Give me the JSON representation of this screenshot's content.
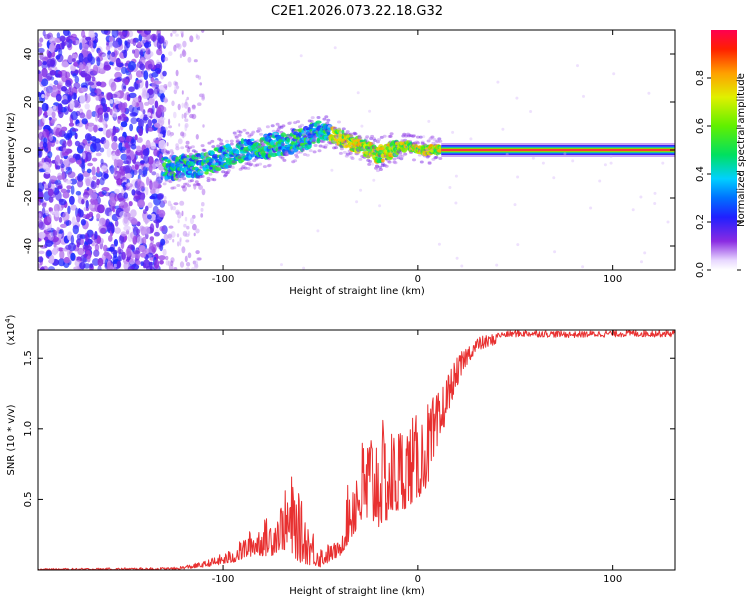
{
  "title": "C2E1.2026.073.22.18.G32",
  "chart_data": [
    {
      "type": "heatmap",
      "name": "spectrogram",
      "xlabel": "Height of straight line (km)",
      "ylabel": "Frequency (Hz)",
      "xlim": [
        -195,
        132
      ],
      "ylim": [
        -50,
        50
      ],
      "xticks": [
        -100,
        0,
        100
      ],
      "xtick_labels": [
        "-100",
        "0",
        "100"
      ],
      "yticks": [
        -40,
        -20,
        0,
        20,
        40
      ],
      "ytick_labels": [
        "-40",
        "-20",
        "0",
        "20",
        "40"
      ],
      "noise_region_km": [
        -195,
        -130
      ],
      "signal_start_km": -130,
      "stable_from_km": 12,
      "ridge_frequency_hz": {
        "x": [
          -130,
          -110,
          -90,
          -75,
          -60,
          -50,
          -45,
          -40,
          -30,
          -20,
          -10,
          -5,
          0,
          5,
          12,
          132
        ],
        "y": [
          -8,
          -6,
          0,
          2,
          4,
          8,
          7,
          5,
          2,
          -2,
          1,
          2,
          0,
          0,
          0,
          0
        ]
      },
      "colorbar": {
        "label": "Normalized spectral amplitude",
        "range": [
          0,
          1
        ],
        "ticks": [
          0.0,
          0.2,
          0.4,
          0.6,
          0.8
        ],
        "tick_labels": [
          "0.0",
          "0.2",
          "0.4",
          "0.6",
          "0.8"
        ]
      }
    },
    {
      "type": "line",
      "name": "snr",
      "xlabel": "Height of straight line (km)",
      "ylabel": "SNR (10 * v/v)",
      "scale_label": "(x10",
      "scale_exponent": "4",
      "xlim": [
        -195,
        132
      ],
      "ylim": [
        0,
        17
      ],
      "xticks": [
        -100,
        0,
        100
      ],
      "xtick_labels": [
        "-100",
        "0",
        "100"
      ],
      "yticks": [
        5,
        10,
        15
      ],
      "ytick_labels": [
        "0.5",
        "1.0",
        "1.5"
      ],
      "color": "#e83030",
      "envelope": {
        "x": [
          -195,
          -125,
          -110,
          -95,
          -85,
          -75,
          -70,
          -65,
          -60,
          -50,
          -40,
          -35,
          -30,
          -25,
          -20,
          -15,
          -10,
          -5,
          0,
          5,
          10,
          15,
          20,
          25,
          30,
          40,
          50,
          60,
          80,
          100,
          132
        ],
        "low": [
          0,
          0,
          0.2,
          0.5,
          1,
          1,
          1.5,
          1,
          0.5,
          0.2,
          1,
          2,
          3,
          3,
          3,
          3.5,
          4,
          4.5,
          5,
          6,
          8,
          11,
          13,
          14.5,
          15.5,
          16,
          16,
          16,
          16,
          16,
          16
        ],
        "high": [
          0.1,
          0.2,
          0.6,
          1.5,
          3,
          4,
          5,
          6.8,
          5,
          1.8,
          2,
          7,
          9,
          10.5,
          11,
          10,
          10.5,
          11,
          11,
          12,
          12.5,
          14,
          15,
          16,
          16.5,
          16.8,
          17,
          17,
          16.9,
          17,
          17
        ]
      }
    }
  ]
}
